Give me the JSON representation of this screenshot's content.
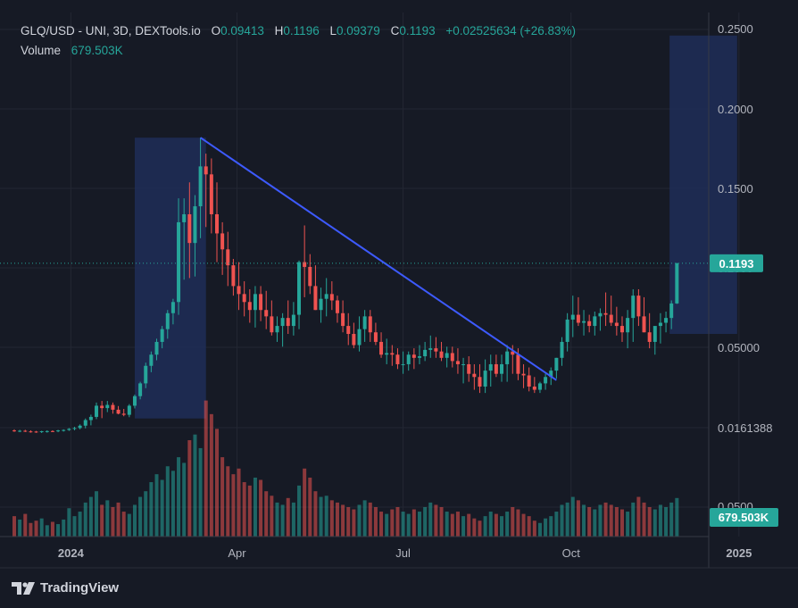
{
  "legend": {
    "symbol": "GLQ/USD - UNI, 3D, DEXTools.io",
    "open_label": "O",
    "open": "0.09413",
    "high_label": "H",
    "high": "0.1196",
    "low_label": "L",
    "low": "0.09379",
    "close_label": "C",
    "close": "0.1193",
    "change": "+0.02525634 (+26.83%)",
    "volume_label": "Volume",
    "volume": "679.503K"
  },
  "price_badge": "0.1193",
  "volume_badge": "679.503K",
  "branding": "TradingView",
  "colors": {
    "background": "#161a25",
    "up": "#26a69a",
    "down": "#ef5350",
    "trendline": "#3d5afe",
    "box": "#1f2e58",
    "grid": "#232733"
  },
  "chart_data": {
    "type": "candlestick",
    "timeframe": "3D",
    "price_axis_ticks": [
      "0.2500",
      "0.2000",
      "0.1500",
      "0.1000",
      "0.05000",
      "0.0161388",
      "0.0500"
    ],
    "time_axis_ticks": [
      "2024",
      "Apr",
      "Jul",
      "Oct",
      "2025",
      "Apr"
    ],
    "ylim": [
      0.0,
      0.26
    ],
    "last_price": 0.1193,
    "x": [
      "2023-12-01",
      "2023-12-04",
      "2023-12-07",
      "2023-12-10",
      "2023-12-13",
      "2023-12-16",
      "2023-12-19",
      "2023-12-22",
      "2023-12-25",
      "2023-12-28",
      "2023-12-31",
      "2024-01-03",
      "2024-01-06",
      "2024-01-09",
      "2024-01-12",
      "2024-01-15",
      "2024-01-18",
      "2024-01-21",
      "2024-01-24",
      "2024-01-27",
      "2024-01-30",
      "2024-02-02",
      "2024-02-05",
      "2024-02-08",
      "2024-02-11",
      "2024-02-14",
      "2024-02-17",
      "2024-02-20",
      "2024-02-23",
      "2024-02-26",
      "2024-02-29",
      "2024-03-03",
      "2024-03-06",
      "2024-03-09",
      "2024-03-12",
      "2024-03-15",
      "2024-03-18",
      "2024-03-21",
      "2024-03-24",
      "2024-03-27",
      "2024-03-30",
      "2024-04-02",
      "2024-04-05",
      "2024-04-08",
      "2024-04-11",
      "2024-04-14",
      "2024-04-17",
      "2024-04-20",
      "2024-04-23",
      "2024-04-26",
      "2024-04-29",
      "2024-05-02",
      "2024-05-05",
      "2024-05-08",
      "2024-05-11",
      "2024-05-14",
      "2024-05-17",
      "2024-05-20",
      "2024-05-23",
      "2024-05-26",
      "2024-05-29",
      "2024-06-01",
      "2024-06-04",
      "2024-06-07",
      "2024-06-10",
      "2024-06-13",
      "2024-06-16",
      "2024-06-19",
      "2024-06-22",
      "2024-06-25",
      "2024-06-28",
      "2024-07-01",
      "2024-07-04",
      "2024-07-07",
      "2024-07-10",
      "2024-07-13",
      "2024-07-16",
      "2024-07-19",
      "2024-07-22",
      "2024-07-25",
      "2024-07-28",
      "2024-07-31",
      "2024-08-03",
      "2024-08-06",
      "2024-08-09",
      "2024-08-12",
      "2024-08-15",
      "2024-08-18",
      "2024-08-21",
      "2024-08-24",
      "2024-08-27",
      "2024-08-30",
      "2024-09-02",
      "2024-09-05",
      "2024-09-08",
      "2024-09-11",
      "2024-09-14",
      "2024-09-17",
      "2024-09-20",
      "2024-09-23",
      "2024-09-26",
      "2024-09-29",
      "2024-10-02",
      "2024-10-05",
      "2024-10-08",
      "2024-10-11",
      "2024-10-14",
      "2024-10-17",
      "2024-10-20",
      "2024-10-23",
      "2024-10-26",
      "2024-10-29",
      "2024-11-01",
      "2024-11-04",
      "2024-11-07",
      "2024-11-10",
      "2024-11-13",
      "2024-11-16",
      "2024-11-19",
      "2024-11-22",
      "2024-11-25",
      "2024-11-28"
    ],
    "open": [
      0.0145,
      0.0141,
      0.0143,
      0.0139,
      0.0138,
      0.0137,
      0.014,
      0.0141,
      0.014,
      0.0145,
      0.0148,
      0.0155,
      0.016,
      0.0175,
      0.021,
      0.023,
      0.03,
      0.0285,
      0.0305,
      0.0275,
      0.025,
      0.0243,
      0.03,
      0.036,
      0.044,
      0.055,
      0.062,
      0.07,
      0.078,
      0.088,
      0.095,
      0.145,
      0.15,
      0.132,
      0.155,
      0.18,
      0.175,
      0.15,
      0.138,
      0.128,
      0.118,
      0.105,
      0.1,
      0.095,
      0.09,
      0.1,
      0.09,
      0.086,
      0.076,
      0.08,
      0.085,
      0.08,
      0.087,
      0.12,
      0.117,
      0.105,
      0.09,
      0.097,
      0.1,
      0.096,
      0.088,
      0.08,
      0.075,
      0.068,
      0.078,
      0.086,
      0.076,
      0.07,
      0.062,
      0.063,
      0.062,
      0.056,
      0.056,
      0.062,
      0.06,
      0.061,
      0.065,
      0.066,
      0.064,
      0.06,
      0.063,
      0.058,
      0.056,
      0.056,
      0.05,
      0.048,
      0.042,
      0.052,
      0.056,
      0.05,
      0.056,
      0.064,
      0.062,
      0.05,
      0.049,
      0.042,
      0.04,
      0.044,
      0.048,
      0.052,
      0.06,
      0.07,
      0.084,
      0.087,
      0.082,
      0.083,
      0.08,
      0.086,
      0.088,
      0.087,
      0.082,
      0.08,
      0.076,
      0.085,
      0.099,
      0.086,
      0.076,
      0.07,
      0.08,
      0.082,
      0.085,
      0.0941
    ],
    "high": [
      0.0152,
      0.0149,
      0.0149,
      0.0146,
      0.0142,
      0.0143,
      0.0146,
      0.0146,
      0.0149,
      0.0152,
      0.016,
      0.0168,
      0.0183,
      0.022,
      0.0244,
      0.032,
      0.033,
      0.033,
      0.032,
      0.0298,
      0.028,
      0.031,
      0.037,
      0.045,
      0.057,
      0.064,
      0.072,
      0.08,
      0.09,
      0.097,
      0.16,
      0.16,
      0.17,
      0.162,
      0.198,
      0.188,
      0.185,
      0.17,
      0.145,
      0.139,
      0.122,
      0.12,
      0.108,
      0.103,
      0.105,
      0.105,
      0.102,
      0.096,
      0.086,
      0.088,
      0.096,
      0.095,
      0.121,
      0.143,
      0.125,
      0.118,
      0.104,
      0.11,
      0.108,
      0.099,
      0.096,
      0.088,
      0.082,
      0.086,
      0.09,
      0.09,
      0.082,
      0.076,
      0.072,
      0.068,
      0.066,
      0.064,
      0.064,
      0.066,
      0.068,
      0.07,
      0.074,
      0.073,
      0.07,
      0.067,
      0.067,
      0.066,
      0.06,
      0.061,
      0.056,
      0.056,
      0.059,
      0.062,
      0.062,
      0.062,
      0.068,
      0.068,
      0.066,
      0.056,
      0.054,
      0.048,
      0.045,
      0.05,
      0.054,
      0.06,
      0.073,
      0.088,
      0.099,
      0.098,
      0.09,
      0.087,
      0.089,
      0.091,
      0.101,
      0.099,
      0.092,
      0.086,
      0.09,
      0.103,
      0.103,
      0.098,
      0.088,
      0.078,
      0.088,
      0.089,
      0.096,
      0.1196
    ],
    "low": [
      0.0136,
      0.0134,
      0.0135,
      0.0131,
      0.013,
      0.0129,
      0.0131,
      0.0135,
      0.0134,
      0.0138,
      0.0142,
      0.0146,
      0.0152,
      0.0158,
      0.0177,
      0.0216,
      0.0222,
      0.026,
      0.025,
      0.0246,
      0.0234,
      0.0228,
      0.0283,
      0.034,
      0.041,
      0.051,
      0.0585,
      0.066,
      0.072,
      0.081,
      0.087,
      0.109,
      0.11,
      0.111,
      0.135,
      0.142,
      0.138,
      0.12,
      0.112,
      0.105,
      0.099,
      0.09,
      0.086,
      0.082,
      0.079,
      0.083,
      0.078,
      0.074,
      0.07,
      0.067,
      0.075,
      0.074,
      0.078,
      0.098,
      0.1,
      0.09,
      0.082,
      0.086,
      0.09,
      0.082,
      0.076,
      0.068,
      0.066,
      0.064,
      0.07,
      0.07,
      0.068,
      0.06,
      0.056,
      0.055,
      0.053,
      0.05,
      0.052,
      0.053,
      0.056,
      0.058,
      0.06,
      0.06,
      0.058,
      0.054,
      0.054,
      0.05,
      0.044,
      0.045,
      0.04,
      0.038,
      0.038,
      0.042,
      0.048,
      0.045,
      0.045,
      0.05,
      0.046,
      0.041,
      0.039,
      0.038,
      0.038,
      0.04,
      0.043,
      0.047,
      0.055,
      0.064,
      0.073,
      0.08,
      0.074,
      0.076,
      0.074,
      0.077,
      0.08,
      0.08,
      0.074,
      0.07,
      0.066,
      0.07,
      0.08,
      0.076,
      0.066,
      0.062,
      0.069,
      0.076,
      0.078,
      0.0938
    ],
    "close": [
      0.0141,
      0.0143,
      0.0139,
      0.0138,
      0.0137,
      0.014,
      0.0141,
      0.014,
      0.0145,
      0.0148,
      0.0155,
      0.016,
      0.0175,
      0.021,
      0.023,
      0.03,
      0.0285,
      0.0305,
      0.0275,
      0.025,
      0.0243,
      0.03,
      0.036,
      0.044,
      0.055,
      0.062,
      0.07,
      0.078,
      0.088,
      0.095,
      0.145,
      0.15,
      0.132,
      0.155,
      0.18,
      0.175,
      0.15,
      0.138,
      0.128,
      0.118,
      0.105,
      0.1,
      0.095,
      0.09,
      0.1,
      0.09,
      0.086,
      0.076,
      0.08,
      0.085,
      0.08,
      0.087,
      0.12,
      0.117,
      0.105,
      0.09,
      0.097,
      0.1,
      0.096,
      0.088,
      0.08,
      0.075,
      0.068,
      0.078,
      0.086,
      0.076,
      0.07,
      0.062,
      0.063,
      0.062,
      0.056,
      0.056,
      0.062,
      0.06,
      0.061,
      0.065,
      0.066,
      0.064,
      0.06,
      0.063,
      0.058,
      0.056,
      0.056,
      0.05,
      0.048,
      0.042,
      0.052,
      0.056,
      0.05,
      0.056,
      0.064,
      0.062,
      0.05,
      0.049,
      0.042,
      0.04,
      0.044,
      0.048,
      0.052,
      0.06,
      0.07,
      0.084,
      0.087,
      0.082,
      0.083,
      0.08,
      0.086,
      0.088,
      0.087,
      0.082,
      0.08,
      0.076,
      0.085,
      0.099,
      0.086,
      0.076,
      0.07,
      0.08,
      0.082,
      0.085,
      0.0941,
      0.1193
    ],
    "volume_series_name": "Volume",
    "volume": [
      18,
      15,
      20,
      12,
      14,
      16,
      10,
      13,
      11,
      15,
      25,
      18,
      22,
      30,
      35,
      40,
      28,
      32,
      26,
      30,
      22,
      20,
      28,
      35,
      40,
      48,
      55,
      50,
      62,
      58,
      70,
      65,
      85,
      90,
      78,
      120,
      108,
      95,
      70,
      62,
      55,
      60,
      48,
      45,
      52,
      50,
      40,
      36,
      30,
      28,
      34,
      30,
      45,
      60,
      52,
      40,
      35,
      36,
      32,
      30,
      28,
      26,
      24,
      28,
      32,
      30,
      26,
      22,
      20,
      24,
      26,
      22,
      20,
      24,
      22,
      26,
      30,
      28,
      26,
      22,
      20,
      22,
      18,
      20,
      16,
      14,
      18,
      22,
      20,
      18,
      22,
      26,
      24,
      20,
      18,
      14,
      12,
      16,
      18,
      22,
      28,
      30,
      35,
      32,
      28,
      26,
      24,
      28,
      30,
      28,
      26,
      24,
      22,
      30,
      35,
      30,
      26,
      24,
      28,
      26,
      30,
      34
    ],
    "annotations": {
      "trendline": {
        "from": {
          "x": "2024-03-12",
          "y": 0.198
        },
        "to": {
          "x": "2024-09-23",
          "y": 0.046
        }
      },
      "boxes": [
        {
          "x_start": "2024-02-05",
          "x_end": "2024-03-15",
          "y_low": 0.022,
          "y_high": 0.198
        },
        {
          "x_start": "2024-11-24",
          "x_end": "2024-12-31",
          "y_low": 0.075,
          "y_high": 0.262
        }
      ]
    }
  }
}
